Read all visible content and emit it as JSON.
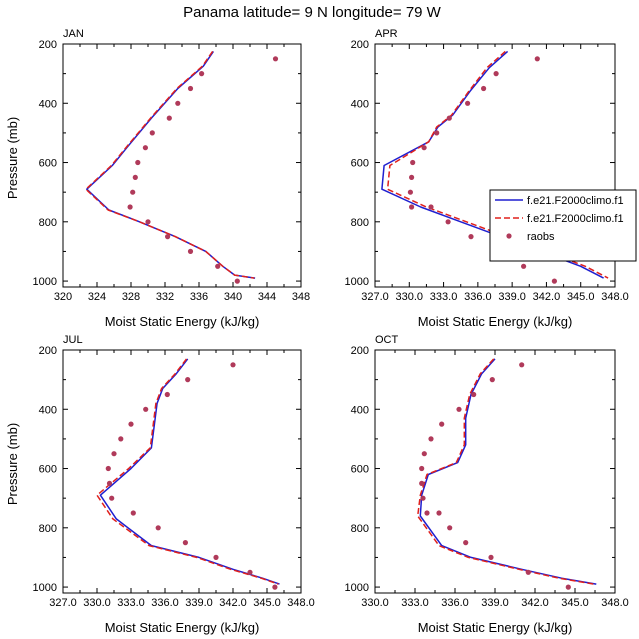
{
  "title": "Panama  latitude= 9 N longitude= 79 W",
  "legend": {
    "entries": [
      {
        "label": "f.e21.F2000climo.f1",
        "color": "#1f1fd0",
        "style": "solid"
      },
      {
        "label": "f.e21.F2000climo.f1",
        "color": "#e0201c",
        "style": "dashed"
      },
      {
        "label": "raobs",
        "color": "#b03a5a",
        "style": "marker"
      }
    ]
  },
  "chart_data": [
    {
      "type": "line",
      "panel": "JAN",
      "title": "JAN",
      "xlabel": "Moist Static Energy (kJ/kg)",
      "ylabel": "Pressure (mb)",
      "xlim": [
        320,
        348
      ],
      "ylim": [
        1000,
        200
      ],
      "xticks": [
        "320",
        "324",
        "328",
        "332",
        "336",
        "340",
        "344",
        "348"
      ],
      "xtick_values": [
        320,
        324,
        328,
        332,
        336,
        340,
        344,
        348
      ],
      "yticks": [
        "200",
        "400",
        "600",
        "800",
        "1000"
      ],
      "ytick_values": [
        200,
        400,
        600,
        800,
        1000
      ],
      "series": [
        {
          "name": "f.e21.F2000climo.f1 (blue)",
          "color": "#1f1fd0",
          "dash": false,
          "x": [
            337.7,
            336.5,
            333.5,
            330.4,
            327.5,
            325.8,
            322.8,
            325.4,
            329.0,
            333.2,
            336.8,
            338.8,
            340.2,
            342.6
          ],
          "y": [
            225,
            275,
            350,
            450,
            550,
            610,
            690,
            760,
            800,
            850,
            900,
            950,
            980,
            990
          ]
        },
        {
          "name": "f.e21.F2000climo.f1 (red)",
          "color": "#e0201c",
          "dash": true,
          "x": [
            337.6,
            336.4,
            333.4,
            330.3,
            327.4,
            325.7,
            322.7,
            325.3,
            329.0,
            333.2,
            336.8,
            338.8,
            340.2,
            342.5
          ],
          "y": [
            225,
            275,
            350,
            450,
            550,
            610,
            690,
            760,
            800,
            850,
            900,
            950,
            980,
            990
          ]
        }
      ],
      "raobs": {
        "name": "raobs",
        "color": "#b03a5a",
        "x": [
          345.0,
          336.3,
          335.0,
          333.5,
          332.5,
          330.5,
          329.7,
          328.8,
          328.5,
          328.2,
          327.9,
          330.0,
          332.3,
          335.0,
          338.2,
          340.5
        ],
        "y": [
          250,
          300,
          350,
          400,
          450,
          500,
          550,
          600,
          650,
          700,
          750,
          800,
          850,
          900,
          950,
          1000
        ]
      }
    },
    {
      "type": "line",
      "panel": "APR",
      "title": "APR",
      "xlabel": "Moist Static Energy (kJ/kg)",
      "ylabel": "",
      "xlim": [
        327,
        348
      ],
      "ylim": [
        1000,
        200
      ],
      "xticks": [
        "327.0",
        "330.0",
        "333.0",
        "336.0",
        "339.0",
        "342.0",
        "345.0",
        "348.0"
      ],
      "xtick_values": [
        327,
        330,
        333,
        336,
        339,
        342,
        345,
        348
      ],
      "yticks": [
        "200",
        "400",
        "600",
        "800",
        "1000"
      ],
      "ytick_values": [
        200,
        400,
        600,
        800,
        1000
      ],
      "series": [
        {
          "name": "f.e21.F2000climo.f1 (blue)",
          "color": "#1f1fd0",
          "dash": false,
          "x": [
            338.6,
            337.0,
            335.3,
            333.8,
            332.5,
            331.7,
            327.8,
            327.6,
            331.0,
            334.5,
            338.0,
            341.5,
            345.0,
            347.0
          ],
          "y": [
            225,
            280,
            360,
            440,
            480,
            530,
            610,
            690,
            750,
            800,
            850,
            900,
            950,
            990
          ]
        },
        {
          "name": "f.e21.F2000climo.f1 (red)",
          "color": "#e0201c",
          "dash": true,
          "x": [
            338.4,
            336.8,
            335.2,
            333.7,
            332.4,
            331.7,
            328.3,
            328.1,
            331.5,
            335.0,
            338.5,
            342.0,
            345.4,
            347.4
          ],
          "y": [
            225,
            280,
            360,
            440,
            480,
            530,
            610,
            690,
            750,
            800,
            850,
            900,
            950,
            990
          ]
        }
      ],
      "raobs": {
        "name": "raobs",
        "color": "#b03a5a",
        "x": [
          341.2,
          337.6,
          336.5,
          335.1,
          333.5,
          332.4,
          331.3,
          330.3,
          330.2,
          330.1,
          330.2,
          331.9,
          333.4,
          335.4,
          337.6,
          340.0,
          342.7
        ],
        "y": [
          250,
          300,
          350,
          400,
          450,
          500,
          550,
          600,
          650,
          700,
          750,
          750,
          800,
          850,
          900,
          950,
          1000
        ]
      }
    },
    {
      "type": "line",
      "panel": "JUL",
      "title": "JUL",
      "xlabel": "Moist Static Energy (kJ/kg)",
      "ylabel": "Pressure (mb)",
      "xlim": [
        327,
        348
      ],
      "ylim": [
        1000,
        200
      ],
      "xticks": [
        "327.0",
        "330.0",
        "333.0",
        "336.0",
        "339.0",
        "342.0",
        "345.0",
        "348.0"
      ],
      "xtick_values": [
        327,
        330,
        333,
        336,
        339,
        342,
        345,
        348
      ],
      "yticks": [
        "200",
        "400",
        "600",
        "800",
        "1000"
      ],
      "ytick_values": [
        200,
        400,
        600,
        800,
        1000
      ],
      "series": [
        {
          "name": "f.e21.F2000climo.f1 (blue)",
          "color": "#1f1fd0",
          "dash": false,
          "x": [
            338.0,
            337.0,
            335.8,
            335.3,
            334.8,
            333.0,
            330.3,
            331.7,
            334.8,
            339.0,
            342.0,
            344.6,
            346.1
          ],
          "y": [
            230,
            280,
            330,
            380,
            530,
            600,
            690,
            770,
            860,
            900,
            940,
            970,
            990
          ]
        },
        {
          "name": "f.e21.F2000climo.f1 (red)",
          "color": "#e0201c",
          "dash": true,
          "x": [
            337.9,
            336.9,
            335.7,
            335.2,
            334.7,
            332.8,
            330.0,
            331.4,
            334.6,
            338.8,
            341.8,
            344.5,
            346.0
          ],
          "y": [
            230,
            280,
            330,
            380,
            530,
            600,
            690,
            770,
            860,
            900,
            940,
            970,
            990
          ]
        }
      ],
      "raobs": {
        "name": "raobs",
        "color": "#b03a5a",
        "x": [
          342.0,
          338.0,
          336.2,
          334.3,
          333.0,
          332.1,
          331.5,
          331.0,
          331.1,
          331.3,
          333.2,
          335.4,
          337.8,
          340.5,
          343.5,
          345.7
        ],
        "y": [
          250,
          300,
          350,
          400,
          450,
          500,
          550,
          600,
          650,
          700,
          750,
          800,
          850,
          900,
          950,
          1000
        ]
      }
    },
    {
      "type": "line",
      "panel": "OCT",
      "title": "OCT",
      "xlabel": "Moist Static Energy (kJ/kg)",
      "ylabel": "",
      "xlim": [
        330,
        348
      ],
      "ylim": [
        1000,
        200
      ],
      "xticks": [
        "330.0",
        "333.0",
        "336.0",
        "339.0",
        "342.0",
        "345.0",
        "348.0"
      ],
      "xtick_values": [
        330,
        333,
        336,
        339,
        342,
        345,
        348
      ],
      "yticks": [
        "200",
        "400",
        "600",
        "800",
        "1000"
      ],
      "ytick_values": [
        200,
        400,
        600,
        800,
        1000
      ],
      "series": [
        {
          "name": "f.e21.F2000climo.f1 (blue)",
          "color": "#1f1fd0",
          "dash": false,
          "x": [
            339.0,
            338.0,
            337.2,
            336.8,
            336.8,
            336.2,
            334.0,
            333.5,
            333.4,
            335.0,
            337.2,
            341.0,
            344.0,
            346.6
          ],
          "y": [
            230,
            280,
            350,
            430,
            520,
            580,
            620,
            690,
            760,
            860,
            900,
            940,
            970,
            990
          ]
        },
        {
          "name": "f.e21.F2000climo.f1 (red)",
          "color": "#e0201c",
          "dash": true,
          "x": [
            338.9,
            337.9,
            337.1,
            336.7,
            336.7,
            336.1,
            333.9,
            333.4,
            333.2,
            334.8,
            337.0,
            340.8,
            343.8,
            346.4
          ],
          "y": [
            230,
            280,
            350,
            430,
            520,
            580,
            620,
            690,
            760,
            860,
            900,
            940,
            970,
            990
          ]
        }
      ],
      "raobs": {
        "name": "raobs",
        "color": "#b03a5a",
        "x": [
          341.0,
          338.8,
          337.4,
          336.3,
          335.0,
          334.2,
          333.7,
          333.5,
          333.5,
          333.6,
          333.9,
          334.8,
          335.6,
          336.8,
          338.7,
          341.5,
          344.5
        ],
        "y": [
          250,
          300,
          350,
          400,
          450,
          500,
          550,
          600,
          650,
          700,
          750,
          750,
          800,
          850,
          900,
          950,
          1000
        ]
      }
    }
  ]
}
